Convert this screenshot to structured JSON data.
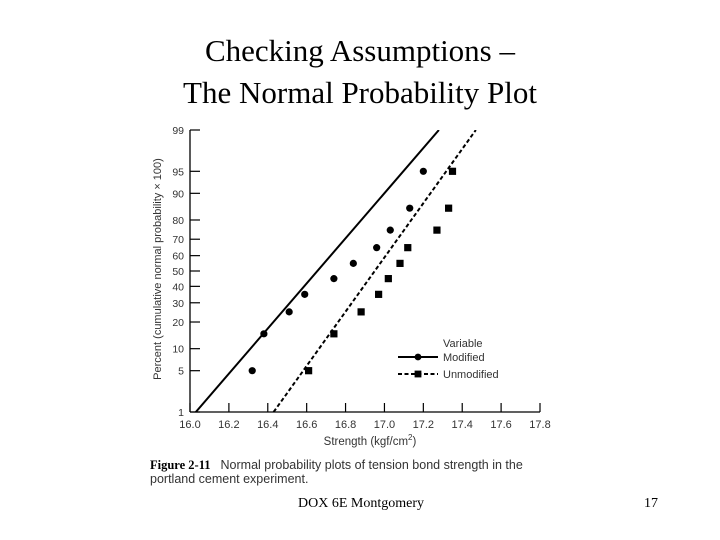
{
  "slide": {
    "title_line1": "Checking Assumptions –",
    "title_line2": "The Normal Probability Plot",
    "footer_text": "DOX 6E Montgomery",
    "page_number": "17"
  },
  "figure": {
    "caption_label": "Figure 2-11",
    "caption_text": "Normal probability plots of tension bond strength in the portland cement experiment."
  },
  "chart_data": {
    "type": "scatter",
    "title": "",
    "xlabel": "Strength (kgf/cm",
    "xlabel_sup": "2",
    "xlabel_end": ")",
    "ylabel": "Percent (cumulative normal probability × 100)",
    "x_scale": "linear",
    "y_scale": "normal probability",
    "xlim": [
      16.0,
      17.8
    ],
    "ylim": [
      1,
      99
    ],
    "x_ticks": [
      16.0,
      16.2,
      16.4,
      16.6,
      16.8,
      17.0,
      17.2,
      17.4,
      17.6,
      17.8
    ],
    "x_tick_labels": [
      "16.0",
      "16.2",
      "16.4",
      "16.6",
      "16.8",
      "17.0",
      "17.2",
      "17.4",
      "17.6",
      "17.8"
    ],
    "y_ticks": [
      1,
      5,
      10,
      20,
      30,
      40,
      50,
      60,
      70,
      80,
      90,
      95,
      99
    ],
    "y_tick_labels": [
      "1",
      "5",
      "10",
      "20",
      "30",
      "40",
      "50",
      "60",
      "70",
      "80",
      "90",
      "95",
      "99"
    ],
    "legend": {
      "title": "Variable",
      "position": "bottom-right"
    },
    "series": [
      {
        "name": "Modified",
        "marker": "circle",
        "line": "solid",
        "x": [
          16.32,
          16.38,
          16.51,
          16.59,
          16.74,
          16.84,
          16.96,
          17.03,
          17.13,
          17.2
        ],
        "y": [
          5,
          15,
          25,
          35,
          45,
          55,
          65,
          75,
          85,
          95
        ],
        "fit_line": {
          "x": [
            16.03,
            17.28
          ],
          "y": [
            1,
            99
          ]
        }
      },
      {
        "name": "Unmodified",
        "marker": "square",
        "line": "dashed",
        "x": [
          16.61,
          16.74,
          16.88,
          16.97,
          17.02,
          17.08,
          17.12,
          17.27,
          17.33,
          17.35
        ],
        "y": [
          5,
          15,
          25,
          35,
          45,
          55,
          65,
          75,
          85,
          95
        ],
        "fit_line": {
          "x": [
            16.43,
            17.47
          ],
          "y": [
            1,
            99
          ]
        }
      }
    ]
  }
}
